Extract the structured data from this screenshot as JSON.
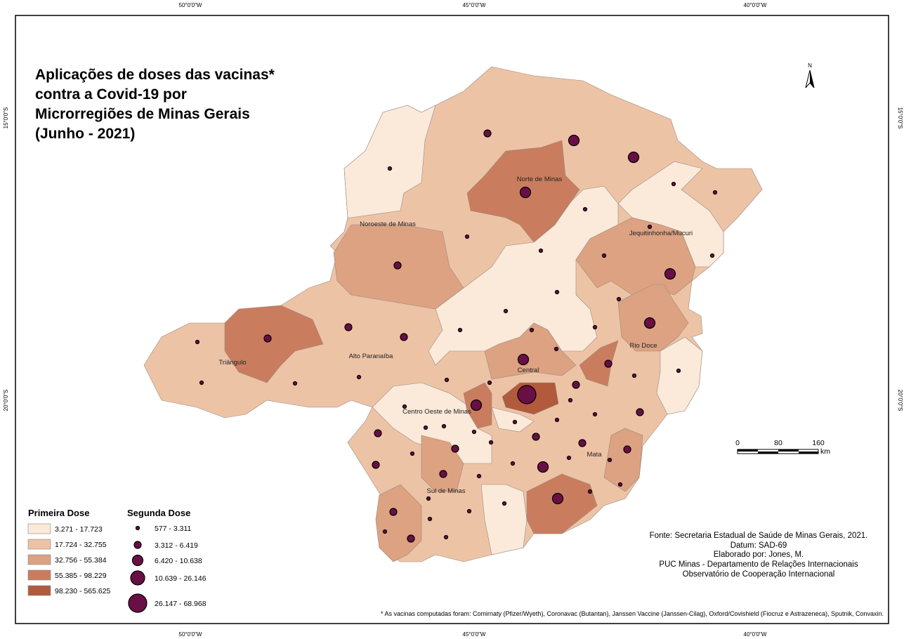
{
  "title": [
    "Aplicações de doses das vacinas*",
    "contra a Covid-19 por",
    "Microrregiões de Minas Gerais",
    "(Junho - 2021)"
  ],
  "graticule": {
    "longitudes": [
      "50°0'0\"W",
      "45°0'0\"W",
      "40°0'0\"W"
    ],
    "latitudes": [
      "15°0'0\"S",
      "20°0'0\"S"
    ]
  },
  "regions": [
    "Norte de Minas",
    "Noroeste de Minas",
    "Jequitinhonha/Mucuri",
    "Triângulo",
    "Alto Paranaíba",
    "Central",
    "Rio Doce",
    "Centro Oeste de Minas",
    "Mata",
    "Sul de Minas"
  ],
  "north_arrow": "N",
  "scale_bar": {
    "labels": [
      "0",
      "80",
      "160"
    ],
    "unit": "km"
  },
  "legend_first_dose": {
    "title": "Primeira Dose",
    "items": [
      "3.271 - 17.723",
      "17.724 - 32.755",
      "32.756 - 55.384",
      "55.385 - 98.229",
      "98.230 - 565.625"
    ]
  },
  "legend_second_dose": {
    "title": "Segunda Dose",
    "items": [
      "577 - 3.311",
      "3.312 - 6.419",
      "6.420 - 10.638",
      "10.639 - 26.146",
      "26.147 - 68.968"
    ]
  },
  "source": [
    "Fonte: Secretaria Estadual de Saúde de Minas Gerais, 2021.",
    "Datum: SAD-69",
    "Elaborado por: Jones, M.",
    "PUC Minas - Departamento de Relações Internacionais",
    "Observatório de Cooperação Internacional"
  ],
  "footnote": "* As vacinas computadas foram: Comirnaty (Pfizer/Wyeth), Coronavac (Butantan), Janssen Vaccine (Janssen-Cilag), Oxford/Covishield (Fiocruz e Astrazeneca), Sputnik, Convaxin."
}
